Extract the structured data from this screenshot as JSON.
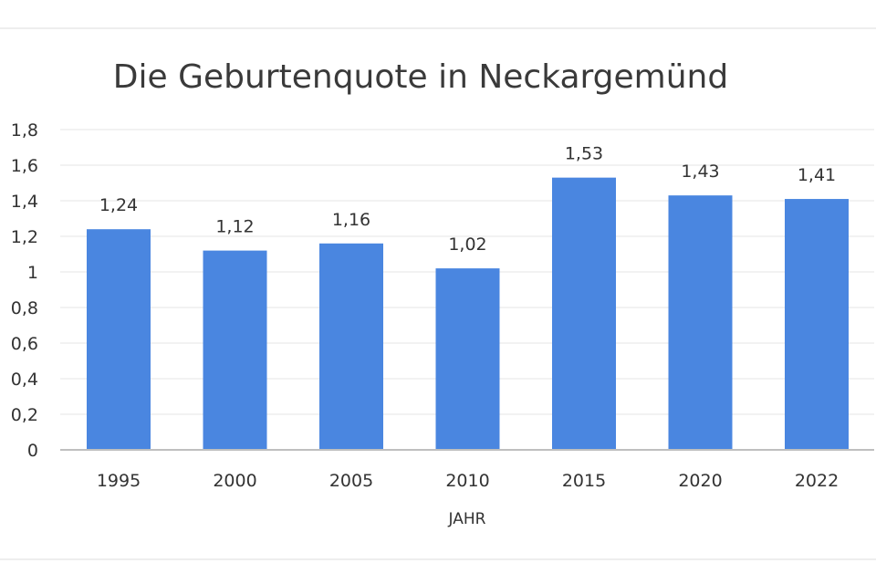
{
  "chart_data": {
    "type": "bar",
    "title": "Die Geburtenquote in Neckargemünd",
    "xlabel": "JAHR",
    "ylabel": "",
    "categories": [
      "1995",
      "2000",
      "2005",
      "2010",
      "2015",
      "2020",
      "2022"
    ],
    "values": [
      1.24,
      1.12,
      1.16,
      1.02,
      1.53,
      1.43,
      1.41
    ],
    "data_labels": [
      "1,24",
      "1,12",
      "1,16",
      "1,02",
      "1,53",
      "1,43",
      "1,41"
    ],
    "ylim": [
      0,
      1.8
    ],
    "yticks": [
      0,
      0.2,
      0.4,
      0.6,
      0.8,
      1,
      1.2,
      1.4,
      1.6,
      1.8
    ],
    "ytick_labels": [
      "0",
      "0,2",
      "0,4",
      "0,6",
      "0,8",
      "1",
      "1,2",
      "1,4",
      "1,6",
      "1,8"
    ],
    "grid": true,
    "legend": "none",
    "bar_color": "#4a86e0",
    "grid_color": "#e6e6e6",
    "axis_color": "#bfbfbf"
  }
}
